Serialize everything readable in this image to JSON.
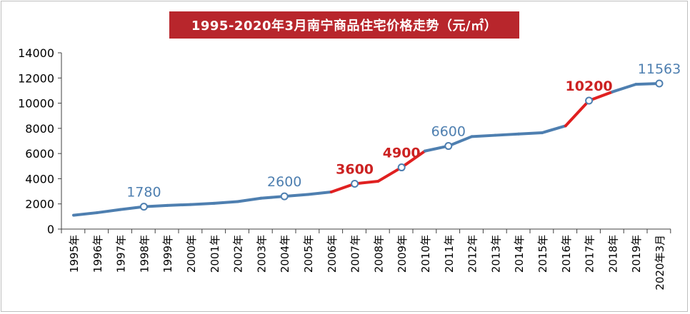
{
  "chart_data": {
    "type": "line",
    "title": "1995-2020年3月南宁商品住宅价格走势（元/㎡）",
    "xlabel": "",
    "ylabel": "",
    "categories": [
      "1995年",
      "1996年",
      "1997年",
      "1998年",
      "1999年",
      "2000年",
      "2001年",
      "2002年",
      "2003年",
      "2004年",
      "2005年",
      "2006年",
      "2007年",
      "2008年",
      "2009年",
      "2010年",
      "2011年",
      "2012年",
      "2013年",
      "2014年",
      "2015年",
      "2016年",
      "2017年",
      "2018年",
      "2019年",
      "2020年3月"
    ],
    "values": [
      1100,
      1300,
      1550,
      1780,
      1880,
      1950,
      2050,
      2180,
      2450,
      2600,
      2750,
      2950,
      3600,
      3800,
      4900,
      6200,
      6600,
      7350,
      7450,
      7550,
      7650,
      8200,
      10200,
      10900,
      11500,
      11563
    ],
    "ylim": [
      0,
      14000
    ],
    "yticks": [
      0,
      2000,
      4000,
      6000,
      8000,
      10000,
      12000,
      14000
    ],
    "highlight_segments": [
      [
        2006,
        2008
      ],
      [
        2008,
        2010
      ],
      [
        2016,
        2018
      ]
    ],
    "annotations": [
      {
        "category": "1998年",
        "label": "1780",
        "color": "#4e7fb0"
      },
      {
        "category": "2004年",
        "label": "2600",
        "color": "#4e7fb0"
      },
      {
        "category": "2007年",
        "label": "3600",
        "color": "#cc2222"
      },
      {
        "category": "2009年",
        "label": "4900",
        "color": "#cc2222"
      },
      {
        "category": "2011年",
        "label": "6600",
        "color": "#4e7fb0"
      },
      {
        "category": "2017年",
        "label": "10200",
        "color": "#cc2222"
      },
      {
        "category": "2020年3月",
        "label": "11563",
        "color": "#4e7fb0"
      }
    ],
    "grid": false,
    "legend": "none",
    "colors": {
      "line": "#4e7fb0",
      "highlight": "#e02020",
      "title_bg": "#b8262c"
    }
  }
}
